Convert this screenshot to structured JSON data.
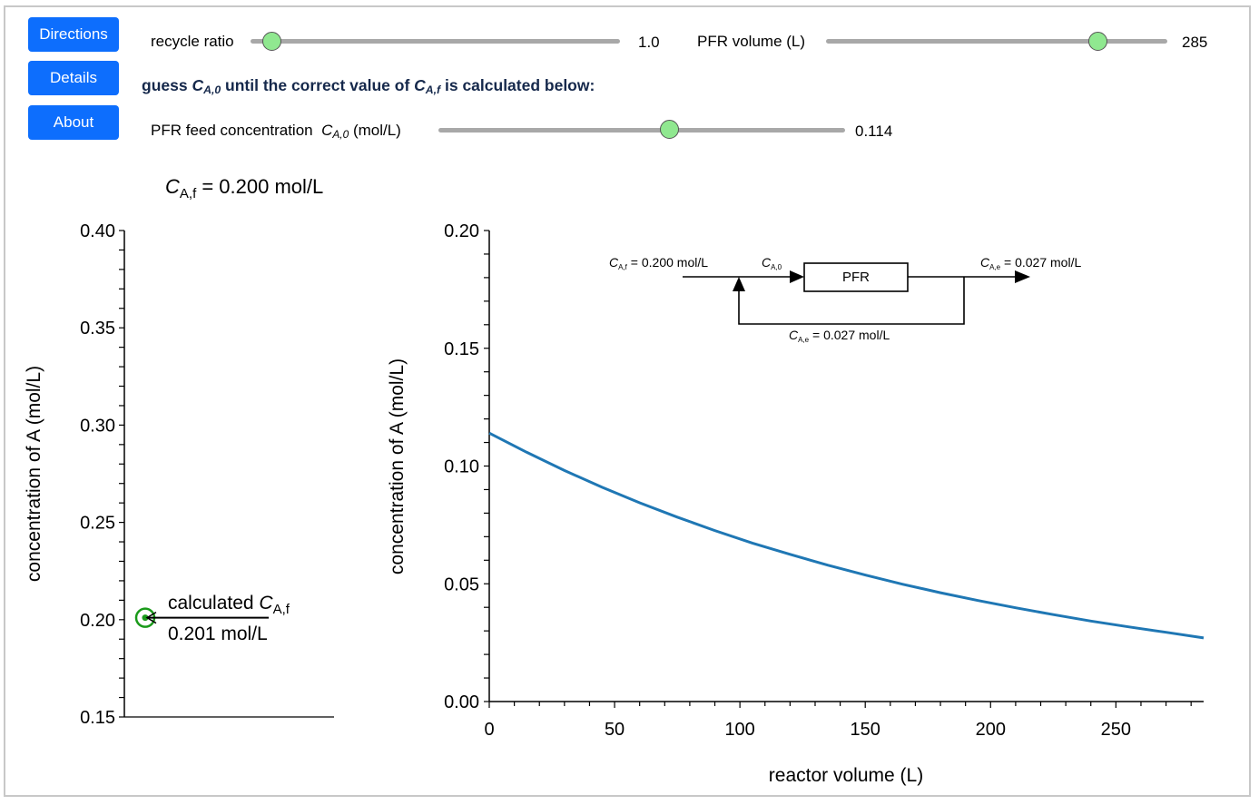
{
  "buttons": {
    "directions": "Directions",
    "details": "Details",
    "about": "About"
  },
  "sliders": {
    "recycle_ratio": {
      "label": "recycle ratio",
      "value": "1.0",
      "min": 0,
      "max": 25,
      "current": 1.0
    },
    "pfr_volume": {
      "label": "PFR volume (L)",
      "value": "285",
      "min": 10,
      "max": 350,
      "current": 285
    },
    "feed_conc": {
      "label_prefix": "PFR feed concentration",
      "label_var": "C",
      "label_sub": "A,0",
      "label_suffix": "(mol/L)",
      "value": "0.114",
      "min": 0.0,
      "max": 0.2,
      "current": 0.114
    }
  },
  "guide": {
    "part1": "guess ",
    "var1": "C",
    "sub1": "A,0",
    "part2": " until the correct value of ",
    "var2": "C",
    "sub2": "A,f",
    "part3": " is calculated below:"
  },
  "left_panel": {
    "title_var": "C",
    "title_sub": "A,f",
    "title_rest": " = 0.200 mol/L",
    "annotation_line1": "calculated ",
    "annotation_var": "C",
    "annotation_sub": "A,f",
    "annotation_line2": "0.201 mol/L",
    "marker_color": "#1a9a1a"
  },
  "diagram": {
    "feed_label_var": "C",
    "feed_label_sub": "A,f",
    "feed_label_rest": " = 0.200 mol/L",
    "inlet_label_var": "C",
    "inlet_label_sub": "A,0",
    "reactor_label": "PFR",
    "outlet_label_var": "C",
    "outlet_label_sub": "A,e",
    "outlet_label_rest": " = 0.027 mol/L",
    "recycle_label_var": "C",
    "recycle_label_sub": "A,e",
    "recycle_label_rest": " = 0.027 mol/L"
  },
  "chart_data": [
    {
      "type": "scatter",
      "title": "C_A,f = 0.200 mol/L",
      "xlabel": "",
      "ylabel": "concentration of A (mol/L)",
      "ylim": [
        0.15,
        0.4
      ],
      "yticks": [
        "0.40",
        "0.35",
        "0.30",
        "0.25",
        "0.20",
        "0.15"
      ],
      "ytick_values": [
        0.4,
        0.35,
        0.3,
        0.25,
        0.2,
        0.15
      ],
      "points": [
        {
          "name": "calculated C_A,f",
          "y": 0.201
        }
      ],
      "grid": false
    },
    {
      "type": "line",
      "title": "",
      "xlabel": "reactor volume (L)",
      "ylabel": "concentration of A (mol/L)",
      "xlim": [
        0,
        285
      ],
      "ylim": [
        0,
        0.2
      ],
      "xticks": [
        "0",
        "50",
        "100",
        "150",
        "200",
        "250"
      ],
      "xtick_values": [
        0,
        50,
        100,
        150,
        200,
        250
      ],
      "yticks": [
        "0.20",
        "0.15",
        "0.10",
        "0.05",
        "0.00"
      ],
      "ytick_values": [
        0.2,
        0.15,
        0.1,
        0.05,
        0.0
      ],
      "grid": false,
      "series": [
        {
          "name": "C_A",
          "color": "#1f77b4",
          "x": [
            0,
            15,
            30,
            45,
            60,
            75,
            90,
            105,
            120,
            135,
            150,
            165,
            180,
            195,
            210,
            225,
            240,
            255,
            270,
            285
          ],
          "y": [
            0.114,
            0.1058,
            0.0981,
            0.091,
            0.0844,
            0.0783,
            0.0726,
            0.0673,
            0.0625,
            0.0579,
            0.0537,
            0.0498,
            0.0462,
            0.0429,
            0.0398,
            0.0369,
            0.0342,
            0.0317,
            0.0294,
            0.027
          ]
        }
      ]
    }
  ]
}
